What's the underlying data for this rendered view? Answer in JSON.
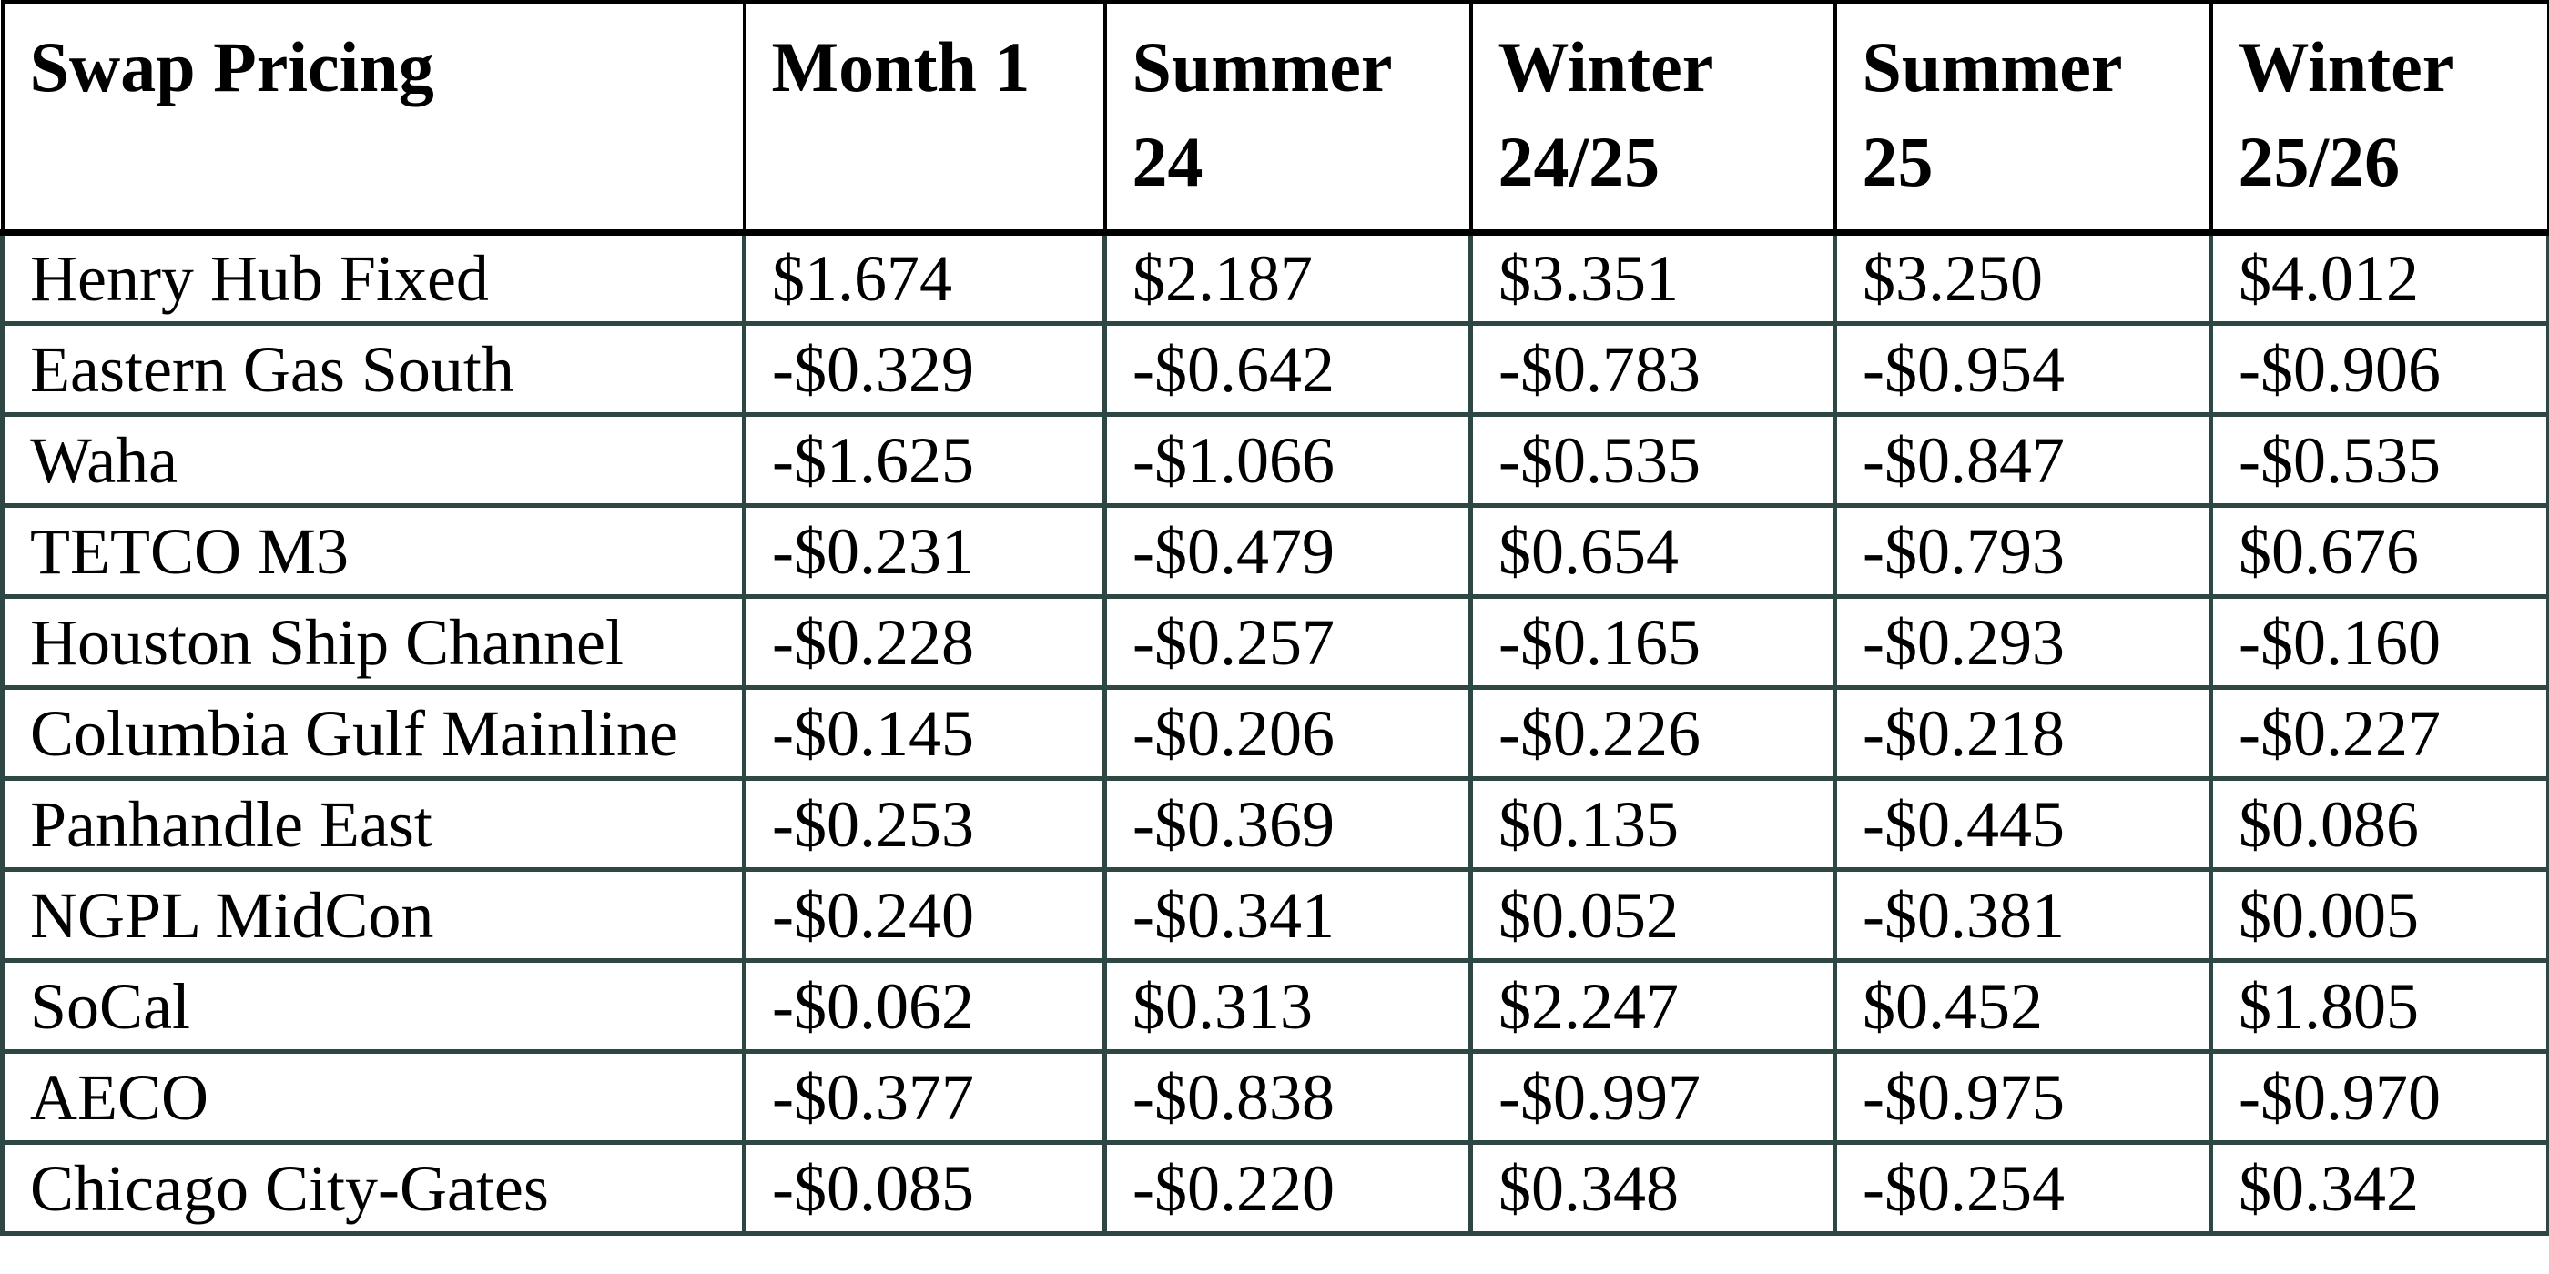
{
  "title": "Swap Pricing",
  "colors": {
    "header_border": "#000000",
    "body_border": "#2E4744",
    "text": "#000000",
    "background": "#FFFFFF"
  },
  "chart_data": {
    "type": "table",
    "title": "Swap Pricing",
    "columns": [
      "Swap Pricing",
      "Month 1",
      "Summer 24",
      "Winter 24/25",
      "Summer 25",
      "Winter 25/26"
    ],
    "rows": [
      {
        "name": "Henry Hub Fixed",
        "values": [
          "$1.674",
          "$2.187",
          "$3.351",
          "$3.250",
          "$4.012"
        ]
      },
      {
        "name": "Eastern Gas South",
        "values": [
          "-$0.329",
          "-$0.642",
          "-$0.783",
          "-$0.954",
          "-$0.906"
        ]
      },
      {
        "name": "Waha",
        "values": [
          "-$1.625",
          "-$1.066",
          "-$0.535",
          "-$0.847",
          "-$0.535"
        ]
      },
      {
        "name": "TETCO M3",
        "values": [
          "-$0.231",
          "-$0.479",
          "$0.654",
          "-$0.793",
          "$0.676"
        ]
      },
      {
        "name": "Houston Ship Channel",
        "values": [
          "-$0.228",
          "-$0.257",
          "-$0.165",
          "-$0.293",
          "-$0.160"
        ]
      },
      {
        "name": "Columbia Gulf Mainline",
        "values": [
          "-$0.145",
          "-$0.206",
          "-$0.226",
          "-$0.218",
          "-$0.227"
        ]
      },
      {
        "name": "Panhandle East",
        "values": [
          "-$0.253",
          "-$0.369",
          "$0.135",
          "-$0.445",
          "$0.086"
        ]
      },
      {
        "name": "NGPL MidCon",
        "values": [
          "-$0.240",
          "-$0.341",
          "$0.052",
          "-$0.381",
          "$0.005"
        ]
      },
      {
        "name": "SoCal",
        "values": [
          "-$0.062",
          "$0.313",
          "$2.247",
          "$0.452",
          "$1.805"
        ]
      },
      {
        "name": "AECO",
        "values": [
          "-$0.377",
          "-$0.838",
          "-$0.997",
          "-$0.975",
          "-$0.970"
        ]
      },
      {
        "name": "Chicago City-Gates",
        "values": [
          "-$0.085",
          "-$0.220",
          "$0.348",
          "-$0.254",
          "$0.342"
        ]
      }
    ]
  }
}
